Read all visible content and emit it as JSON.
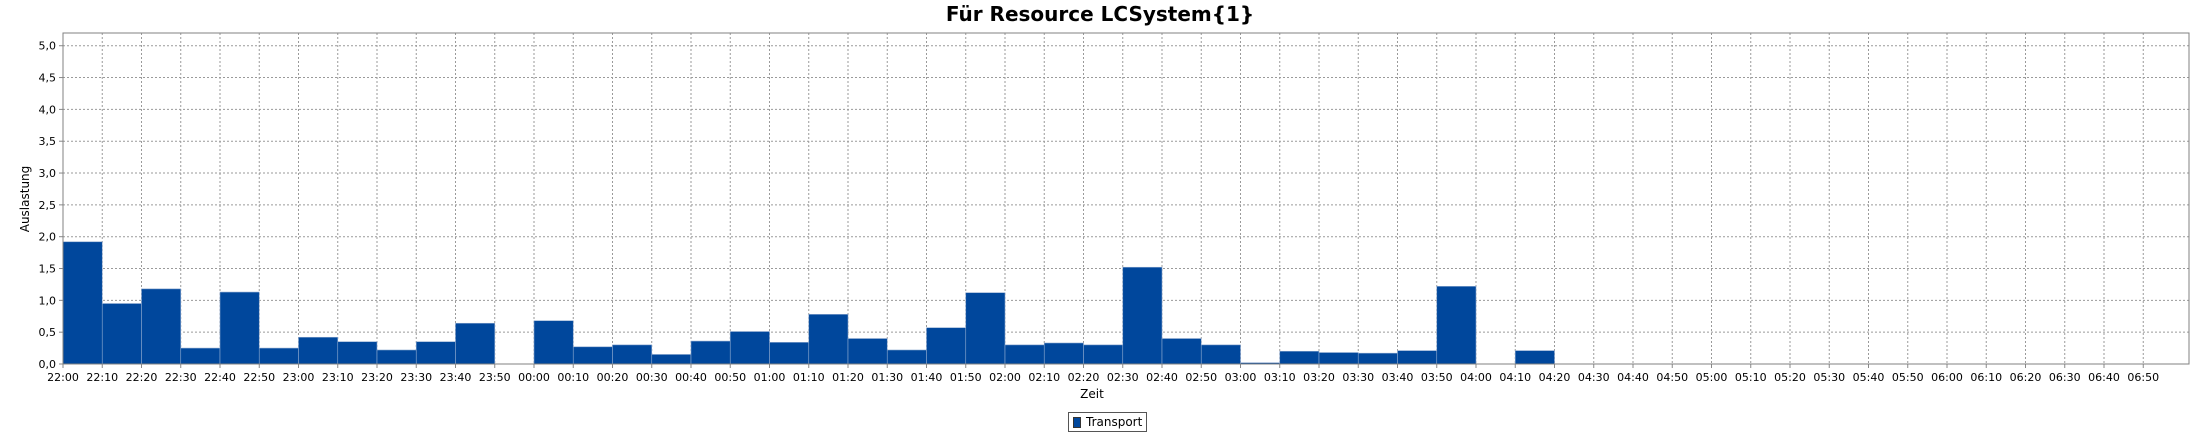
{
  "chart_data": {
    "type": "bar",
    "title": "Für Resource LCSystem{1}",
    "xlabel": "Zeit",
    "ylabel": "Auslastung",
    "ylim": [
      0,
      5.2
    ],
    "yticks": [
      "0,0",
      "0,5",
      "1,0",
      "1,5",
      "2,0",
      "2,5",
      "3,0",
      "3,5",
      "4,0",
      "4,5",
      "5,0"
    ],
    "ytick_values": [
      0,
      0.5,
      1,
      1.5,
      2,
      2.5,
      3,
      3.5,
      4,
      4.5,
      5
    ],
    "grid": true,
    "legend_position": "bottom-center",
    "categories": [
      "22:00",
      "22:10",
      "22:20",
      "22:30",
      "22:40",
      "22:50",
      "23:00",
      "23:10",
      "23:20",
      "23:30",
      "23:40",
      "23:50",
      "00:00",
      "00:10",
      "00:20",
      "00:30",
      "00:40",
      "00:50",
      "01:00",
      "01:10",
      "01:20",
      "01:30",
      "01:40",
      "01:50",
      "02:00",
      "02:10",
      "02:20",
      "02:30",
      "02:40",
      "02:50",
      "03:00",
      "03:10",
      "03:20",
      "03:30",
      "03:40",
      "03:50",
      "04:00",
      "04:10",
      "04:20",
      "04:30",
      "04:40",
      "04:50",
      "05:00",
      "05:10",
      "05:20",
      "05:30",
      "05:40",
      "05:50",
      "06:00",
      "06:10",
      "06:20",
      "06:30",
      "06:40",
      "06:50"
    ],
    "series": [
      {
        "name": "Transport",
        "color": "#00479c",
        "values": [
          1.92,
          0.95,
          1.18,
          0.25,
          1.13,
          0.25,
          0.42,
          0.35,
          0.22,
          0.35,
          0.64,
          0,
          0.68,
          0.27,
          0.3,
          0.15,
          0.36,
          0.51,
          0.34,
          0.78,
          0.4,
          0.22,
          0.57,
          1.12,
          0.3,
          0.33,
          0.3,
          1.52,
          0.4,
          0.3,
          0.02,
          0.2,
          0.18,
          0.17,
          0.21,
          1.22,
          0,
          0.21,
          0,
          0,
          0,
          0,
          0,
          0,
          0,
          0,
          0,
          0,
          0,
          0,
          0,
          0,
          0,
          0
        ]
      }
    ]
  }
}
